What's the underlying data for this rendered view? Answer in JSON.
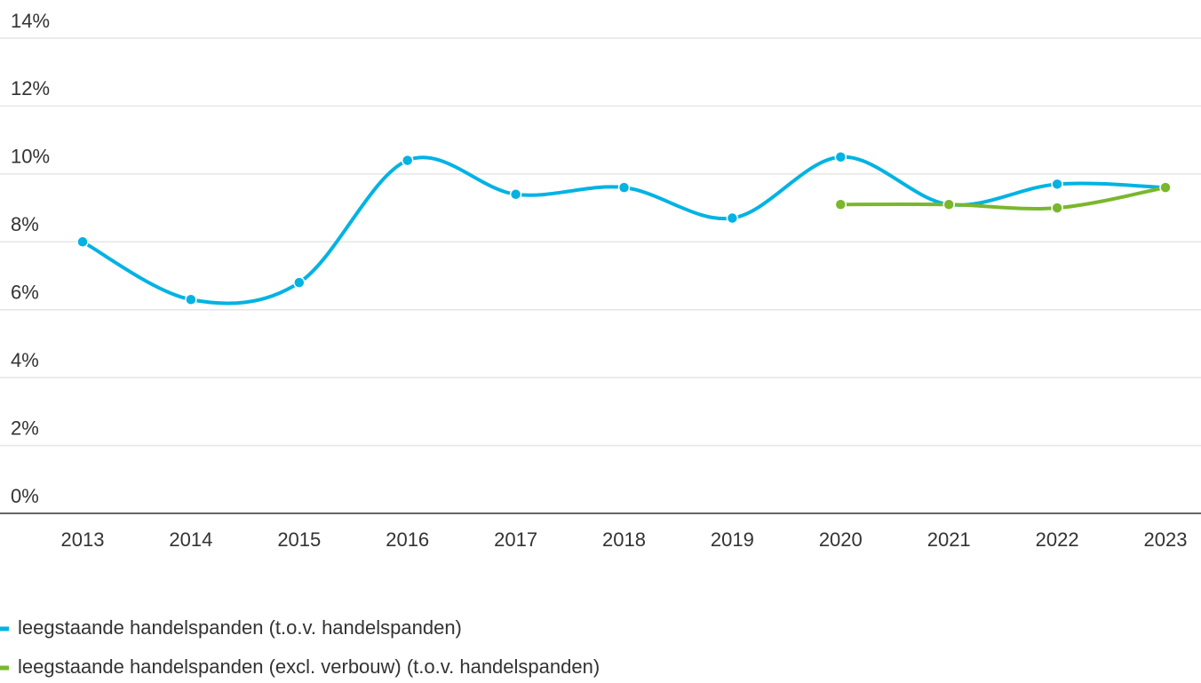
{
  "chart_data": {
    "type": "line",
    "categories": [
      "2013",
      "2014",
      "2015",
      "2016",
      "2017",
      "2018",
      "2019",
      "2020",
      "2021",
      "2022",
      "2023"
    ],
    "series": [
      {
        "name": "leegstaande handelspanden (t.o.v. handelspanden)",
        "color": "#00b3e3",
        "values": [
          8.0,
          6.3,
          6.8,
          10.4,
          9.4,
          9.6,
          8.7,
          10.5,
          9.1,
          9.7,
          9.6
        ]
      },
      {
        "name": "leegstaande handelspanden (excl. verbouw) (t.o.v. handelspanden)",
        "color": "#7ab72c",
        "values": [
          null,
          null,
          null,
          null,
          null,
          null,
          null,
          9.1,
          9.1,
          9.0,
          9.6
        ]
      }
    ],
    "ylim": [
      0,
      14
    ],
    "yticks": [
      {
        "value": 0,
        "label": "0%"
      },
      {
        "value": 2,
        "label": "2%"
      },
      {
        "value": 4,
        "label": "4%"
      },
      {
        "value": 6,
        "label": "6%"
      },
      {
        "value": 8,
        "label": "8%"
      },
      {
        "value": 10,
        "label": "10%"
      },
      {
        "value": 12,
        "label": "12%"
      },
      {
        "value": 14,
        "label": "14%"
      }
    ],
    "grid": true
  }
}
